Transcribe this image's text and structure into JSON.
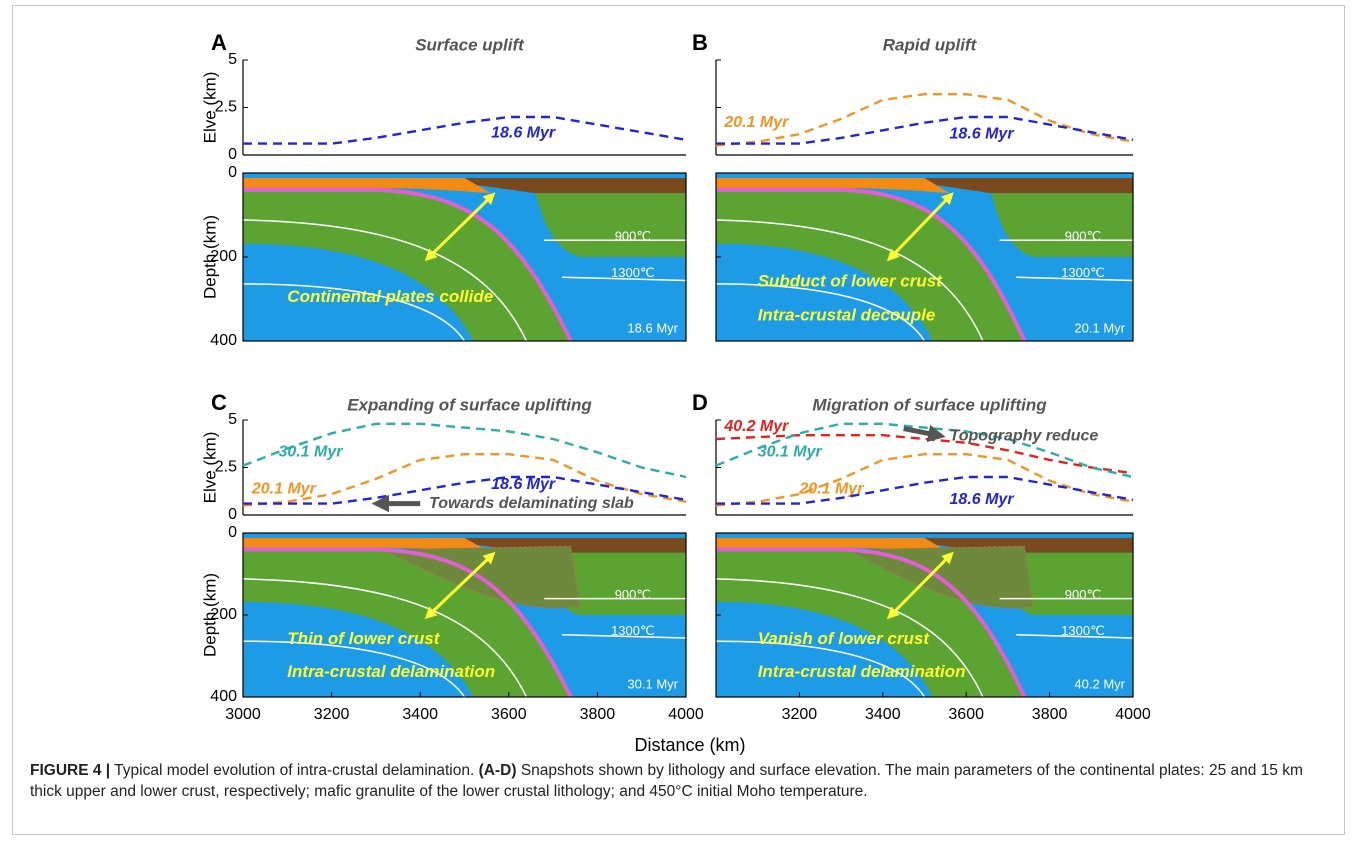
{
  "chart_data": [
    {
      "type": "line",
      "panel": "A",
      "title": "Surface uplift",
      "ylabel": "Elve (km)",
      "xlim": [
        3000,
        4000
      ],
      "ylim": [
        0,
        5
      ],
      "yticks": [
        0,
        2.5,
        5
      ],
      "series": [
        {
          "name": "18.6 Myr",
          "color": "#2323d8",
          "x": [
            3000,
            3100,
            3200,
            3300,
            3400,
            3500,
            3600,
            3700,
            3800,
            3900,
            4000
          ],
          "values": [
            0.6,
            0.6,
            0.6,
            0.9,
            1.3,
            1.7,
            2.0,
            2.0,
            1.6,
            1.2,
            0.8
          ]
        }
      ]
    },
    {
      "type": "line",
      "panel": "B",
      "title": "Rapid uplift",
      "xlim": [
        3000,
        4000
      ],
      "ylim": [
        0,
        5
      ],
      "yticks": [
        0,
        2.5,
        5
      ],
      "series": [
        {
          "name": "20.1 Myr",
          "color": "#f39422",
          "x": [
            3000,
            3100,
            3200,
            3300,
            3400,
            3500,
            3600,
            3700,
            3800,
            3900,
            4000
          ],
          "values": [
            0.5,
            0.7,
            1.1,
            1.9,
            2.9,
            3.2,
            3.2,
            2.9,
            1.8,
            1.1,
            0.7
          ]
        },
        {
          "name": "18.6 Myr",
          "color": "#2323d8",
          "x": [
            3000,
            3100,
            3200,
            3300,
            3400,
            3500,
            3600,
            3700,
            3800,
            3900,
            4000
          ],
          "values": [
            0.6,
            0.6,
            0.6,
            0.9,
            1.3,
            1.7,
            2.0,
            2.0,
            1.6,
            1.2,
            0.8
          ]
        }
      ]
    },
    {
      "type": "line",
      "panel": "C",
      "title": "Expanding of surface uplifting",
      "ylabel": "Elve (km)",
      "xlim": [
        3000,
        4000
      ],
      "ylim": [
        0,
        5
      ],
      "yticks": [
        0,
        2.5,
        5
      ],
      "series": [
        {
          "name": "30.1 Myr",
          "color": "#2aaea6",
          "x": [
            3000,
            3100,
            3200,
            3300,
            3400,
            3500,
            3600,
            3700,
            3800,
            3900,
            4000
          ],
          "values": [
            2.6,
            3.5,
            4.3,
            4.8,
            4.8,
            4.6,
            4.4,
            4.0,
            3.3,
            2.5,
            2.0
          ]
        },
        {
          "name": "20.1 Myr",
          "color": "#f39422",
          "x": [
            3000,
            3100,
            3200,
            3300,
            3400,
            3500,
            3600,
            3700,
            3800,
            3900,
            4000
          ],
          "values": [
            0.5,
            0.7,
            1.1,
            1.9,
            2.9,
            3.2,
            3.2,
            2.9,
            1.8,
            1.1,
            0.7
          ]
        },
        {
          "name": "18.6 Myr",
          "color": "#2323d8",
          "x": [
            3000,
            3100,
            3200,
            3300,
            3400,
            3500,
            3600,
            3700,
            3800,
            3900,
            4000
          ],
          "values": [
            0.6,
            0.6,
            0.6,
            0.9,
            1.3,
            1.7,
            2.0,
            2.0,
            1.6,
            1.2,
            0.8
          ]
        }
      ],
      "annotation": "Towards delaminating slab"
    },
    {
      "type": "line",
      "panel": "D",
      "title": "Migration of surface uplifting",
      "xlim": [
        3000,
        4000
      ],
      "ylim": [
        0,
        5
      ],
      "yticks": [
        0,
        2.5,
        5
      ],
      "series": [
        {
          "name": "40.2 Myr",
          "color": "#e8201c",
          "x": [
            3000,
            3100,
            3200,
            3300,
            3400,
            3500,
            3600,
            3700,
            3800,
            3900,
            4000
          ],
          "values": [
            4.0,
            4.1,
            4.2,
            4.2,
            4.2,
            4.0,
            3.8,
            3.4,
            2.9,
            2.5,
            2.2
          ]
        },
        {
          "name": "30.1 Myr",
          "color": "#2aaea6",
          "x": [
            3000,
            3100,
            3200,
            3300,
            3400,
            3500,
            3600,
            3700,
            3800,
            3900,
            4000
          ],
          "values": [
            2.6,
            3.5,
            4.3,
            4.8,
            4.8,
            4.6,
            4.4,
            4.0,
            3.3,
            2.5,
            2.0
          ]
        },
        {
          "name": "20.1 Myr",
          "color": "#f39422",
          "x": [
            3000,
            3100,
            3200,
            3300,
            3400,
            3500,
            3600,
            3700,
            3800,
            3900,
            4000
          ],
          "values": [
            0.5,
            0.7,
            1.1,
            1.9,
            2.9,
            3.2,
            3.2,
            2.9,
            1.8,
            1.1,
            0.7
          ]
        },
        {
          "name": "18.6 Myr",
          "color": "#2323d8",
          "x": [
            3000,
            3100,
            3200,
            3300,
            3400,
            3500,
            3600,
            3700,
            3800,
            3900,
            4000
          ],
          "values": [
            0.6,
            0.6,
            0.6,
            0.9,
            1.3,
            1.7,
            2.0,
            2.0,
            1.6,
            1.2,
            0.8
          ]
        }
      ],
      "annotation": "Topography reduce"
    }
  ],
  "sections": [
    {
      "ylabel": "Depth (km)",
      "ylim": [
        0,
        400
      ],
      "yticks": [
        0,
        200,
        400
      ],
      "labels": [
        "Continental plates collide"
      ],
      "isotherms": [
        "900℃",
        "1300℃"
      ],
      "time": "18.6 Myr"
    },
    {
      "ylim": [
        0,
        400
      ],
      "yticks": [
        0,
        200,
        400
      ],
      "labels": [
        "Subduct of lower crust",
        "Intra-crustal decouple"
      ],
      "isotherms": [
        "900℃",
        "1300℃"
      ],
      "time": "20.1 Myr"
    },
    {
      "ylabel": "Depth (km)",
      "ylim": [
        0,
        400
      ],
      "yticks": [
        0,
        200,
        400
      ],
      "labels": [
        "Thin of lower crust",
        "Intra-crustal delamination"
      ],
      "isotherms": [
        "900℃",
        "1300℃"
      ],
      "time": "30.1 Myr"
    },
    {
      "ylim": [
        0,
        400
      ],
      "yticks": [
        0,
        200,
        400
      ],
      "labels": [
        "Vanish of lower crust",
        "Intra-crustal delamination"
      ],
      "isotherms": [
        "900℃",
        "1300℃"
      ],
      "time": "40.2 Myr"
    }
  ],
  "distance_axis": {
    "label": "Distance (km)",
    "xlim": [
      3000,
      4000
    ],
    "xticks": [
      3000,
      3200,
      3400,
      3600,
      3800,
      4000
    ]
  },
  "caption": {
    "label": "FIGURE 4 |",
    "text": "Typical model evolution of intra-crustal delamination.",
    "panels": "(A-D)",
    "description": "Snapshots shown by lithology and surface elevation. The main parameters of the continental plates: 25 and 15 km thick upper and lower crust, respectively; mafic granulite of the lower crustal lithology; and 450°C initial Moho temperature."
  }
}
